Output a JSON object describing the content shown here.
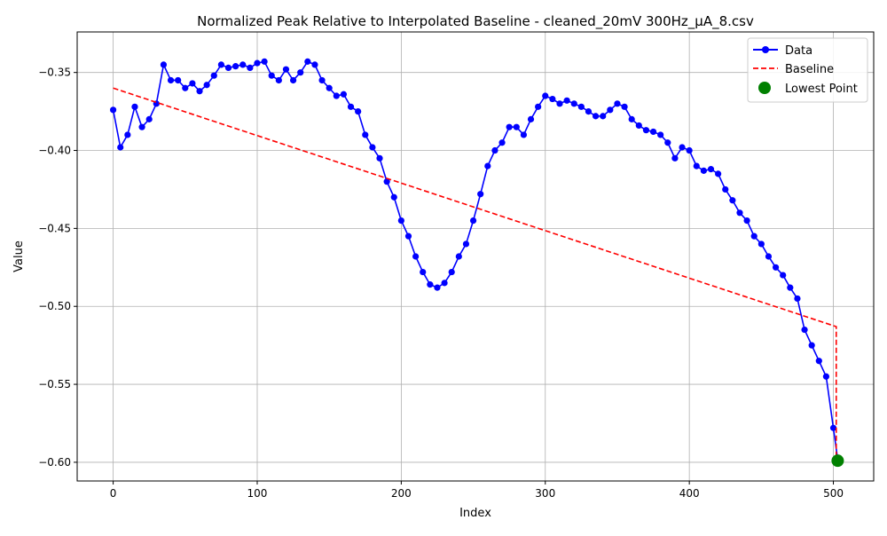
{
  "chart_data": {
    "type": "line",
    "title": "Normalized Peak Relative to Interpolated Baseline - cleaned_20mV 300Hz_µA_8.csv",
    "xlabel": "Index",
    "ylabel": "Value",
    "xlim": [
      -25,
      528
    ],
    "ylim": [
      -0.612,
      -0.324
    ],
    "grid": true,
    "legend_position": "upper right",
    "xticks": [
      0,
      100,
      200,
      300,
      400,
      500
    ],
    "yticks": [
      -0.6,
      -0.55,
      -0.5,
      -0.45,
      -0.4,
      -0.35
    ],
    "xtick_labels": [
      "0",
      "100",
      "200",
      "300",
      "400",
      "500"
    ],
    "ytick_labels": [
      "−0.60",
      "−0.55",
      "−0.50",
      "−0.45",
      "−0.40",
      "−0.35"
    ],
    "series": [
      {
        "name": "Data",
        "kind": "line-with-markers",
        "color": "#0000ff",
        "x": [
          0,
          5,
          10,
          15,
          20,
          25,
          30,
          35,
          40,
          45,
          50,
          55,
          60,
          65,
          70,
          75,
          80,
          85,
          90,
          95,
          100,
          105,
          110,
          115,
          120,
          125,
          130,
          135,
          140,
          145,
          150,
          155,
          160,
          165,
          170,
          175,
          180,
          185,
          190,
          195,
          200,
          205,
          210,
          215,
          220,
          225,
          230,
          235,
          240,
          245,
          250,
          255,
          260,
          265,
          270,
          275,
          280,
          285,
          290,
          295,
          300,
          305,
          310,
          315,
          320,
          325,
          330,
          335,
          340,
          345,
          350,
          355,
          360,
          365,
          370,
          375,
          380,
          385,
          390,
          395,
          400,
          405,
          410,
          415,
          420,
          425,
          430,
          435,
          440,
          445,
          450,
          455,
          460,
          465,
          470,
          475,
          480,
          485,
          490,
          495,
          500,
          503
        ],
        "y": [
          -0.374,
          -0.398,
          -0.39,
          -0.372,
          -0.385,
          -0.38,
          -0.37,
          -0.345,
          -0.355,
          -0.355,
          -0.36,
          -0.357,
          -0.362,
          -0.358,
          -0.352,
          -0.345,
          -0.347,
          -0.346,
          -0.345,
          -0.347,
          -0.344,
          -0.343,
          -0.352,
          -0.355,
          -0.348,
          -0.355,
          -0.35,
          -0.343,
          -0.345,
          -0.355,
          -0.36,
          -0.365,
          -0.364,
          -0.372,
          -0.375,
          -0.39,
          -0.398,
          -0.405,
          -0.42,
          -0.43,
          -0.445,
          -0.455,
          -0.468,
          -0.478,
          -0.486,
          -0.488,
          -0.485,
          -0.478,
          -0.468,
          -0.46,
          -0.445,
          -0.428,
          -0.41,
          -0.4,
          -0.395,
          -0.385,
          -0.385,
          -0.39,
          -0.38,
          -0.372,
          -0.365,
          -0.367,
          -0.37,
          -0.368,
          -0.37,
          -0.372,
          -0.375,
          -0.378,
          -0.378,
          -0.374,
          -0.37,
          -0.372,
          -0.38,
          -0.384,
          -0.387,
          -0.388,
          -0.39,
          -0.395,
          -0.405,
          -0.398,
          -0.4,
          -0.41,
          -0.413,
          -0.412,
          -0.415,
          -0.425,
          -0.432,
          -0.44,
          -0.445,
          -0.455,
          -0.46,
          -0.468,
          -0.475,
          -0.48,
          -0.488,
          -0.495,
          -0.515,
          -0.525,
          -0.535,
          -0.545,
          -0.578,
          -0.598
        ]
      },
      {
        "name": "Baseline",
        "kind": "dashed-line",
        "color": "#ff0000",
        "x": [
          0,
          502,
          502,
          503
        ],
        "y": [
          -0.36,
          -0.513,
          -0.598,
          -0.598
        ]
      },
      {
        "name": "Lowest Point",
        "kind": "marker",
        "color": "#008000",
        "x": [
          503
        ],
        "y": [
          -0.599
        ]
      }
    ]
  }
}
